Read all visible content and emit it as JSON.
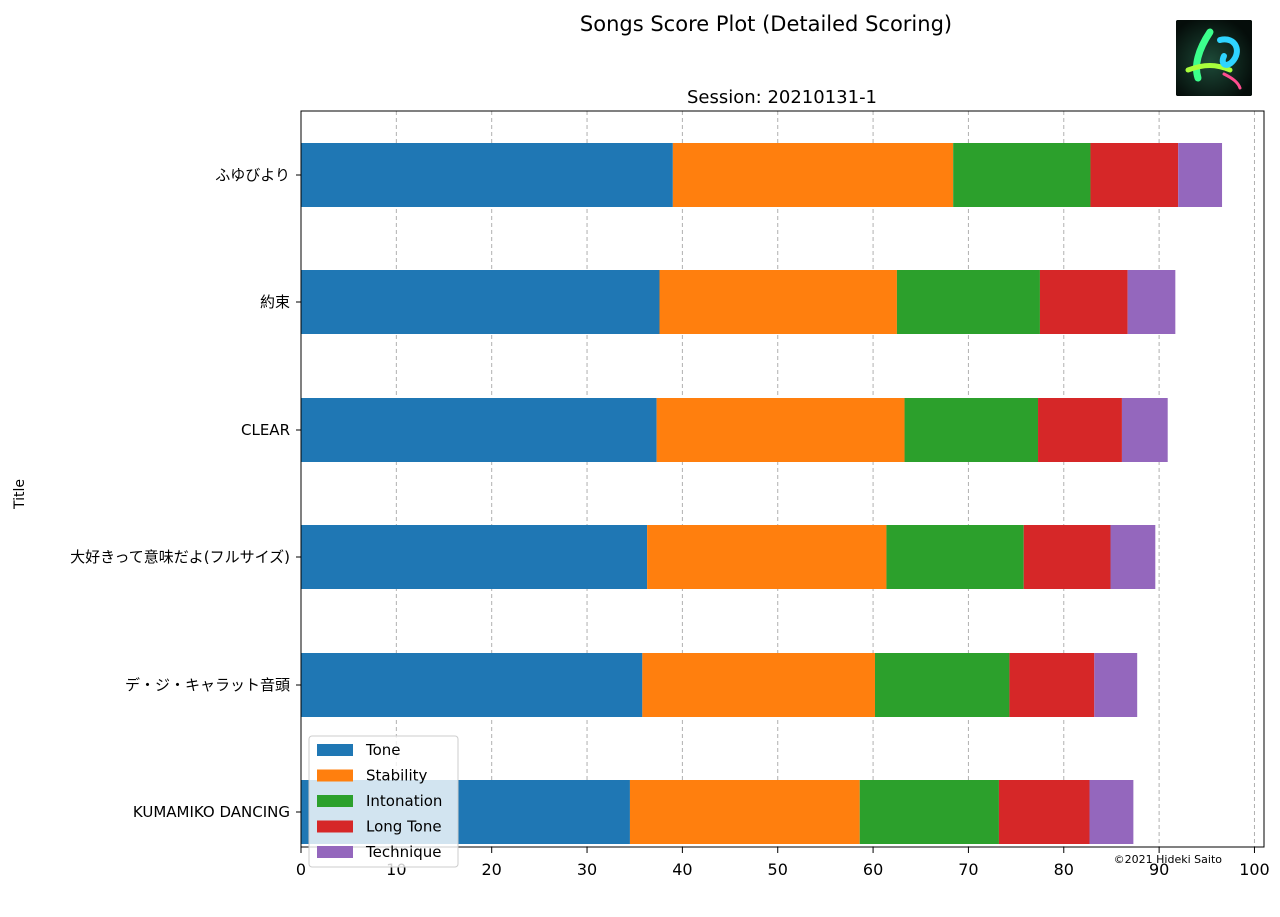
{
  "chart_data": {
    "type": "bar",
    "orientation": "horizontal",
    "stacked": true,
    "title": "Songs Score Plot (Detailed Scoring)",
    "subtitle": "Session: 20210131-1",
    "xlabel": "",
    "ylabel": "Title",
    "xlim": [
      0,
      101
    ],
    "xticks": [
      0,
      10,
      20,
      30,
      40,
      50,
      60,
      70,
      80,
      90,
      100
    ],
    "grid": "vertical dashed",
    "legend_position": "bottom-left",
    "categories": [
      "ふゆびより",
      "約束",
      "CLEAR",
      "大好きって意味だよ(フルサイズ)",
      "デ・ジ・キャラット音頭",
      "KUMAMIKO DANCING"
    ],
    "series": [
      {
        "name": "Tone",
        "color": "#1f77b4",
        "values": [
          39.0,
          37.6,
          37.3,
          36.3,
          35.8,
          34.5
        ]
      },
      {
        "name": "Stability",
        "color": "#ff7f0e",
        "values": [
          29.4,
          24.9,
          26.0,
          25.1,
          24.4,
          24.1
        ]
      },
      {
        "name": "Intonation",
        "color": "#2ca02c",
        "values": [
          14.4,
          15.0,
          14.0,
          14.4,
          14.1,
          14.6
        ]
      },
      {
        "name": "Long Tone",
        "color": "#d62728",
        "values": [
          9.2,
          9.2,
          8.8,
          9.1,
          8.9,
          9.5
        ]
      },
      {
        "name": "Technique",
        "color": "#9467bd",
        "values": [
          4.6,
          5.0,
          4.8,
          4.7,
          4.5,
          4.6
        ]
      }
    ],
    "copyright": "©2021 Hideki Saito"
  },
  "logo": {
    "name": "app-logo-icon"
  }
}
